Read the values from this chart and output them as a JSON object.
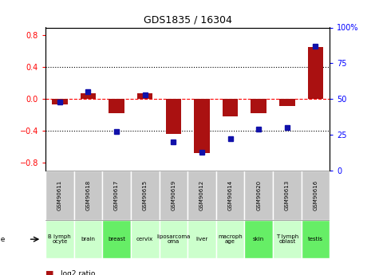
{
  "title": "GDS1835 / 16304",
  "samples": [
    "GSM90611",
    "GSM90618",
    "GSM90617",
    "GSM90615",
    "GSM90619",
    "GSM90612",
    "GSM90614",
    "GSM90620",
    "GSM90613",
    "GSM90616"
  ],
  "cell_lines": [
    "B lymph\nocyte",
    "brain",
    "breast",
    "cervix",
    "liposarcoma\noma",
    "liver",
    "macroph\nage",
    "skin",
    "T lymph\noblast",
    "testis"
  ],
  "cell_lines_display": [
    "B lymph\nocyte",
    "brain",
    "breast",
    "cervix",
    "liposarcoma\noma",
    "liver",
    "macroph\nage",
    "skin",
    "T lymph\noblast",
    "testis"
  ],
  "log2_ratio": [
    -0.07,
    0.07,
    -0.18,
    0.07,
    -0.44,
    -0.68,
    -0.22,
    -0.18,
    -0.09,
    0.65
  ],
  "percentile_rank": [
    48,
    55,
    27,
    53,
    20,
    13,
    22,
    29,
    30,
    87
  ],
  "bar_color": "#aa1111",
  "dot_color": "#1111aa",
  "bg_color_gsm": "#c8c8c8",
  "bg_color_cell_light": "#ccffcc",
  "bg_color_cell_dark": "#66ee66",
  "ylim_left": [
    -0.9,
    0.9
  ],
  "ylim_right": [
    0,
    100
  ],
  "yticks_left": [
    -0.8,
    -0.4,
    0.0,
    0.4,
    0.8
  ],
  "yticks_right": [
    0,
    25,
    50,
    75,
    100
  ],
  "cell_highlighted": [
    false,
    false,
    true,
    false,
    false,
    false,
    false,
    true,
    false,
    true
  ],
  "bar_width": 0.55
}
